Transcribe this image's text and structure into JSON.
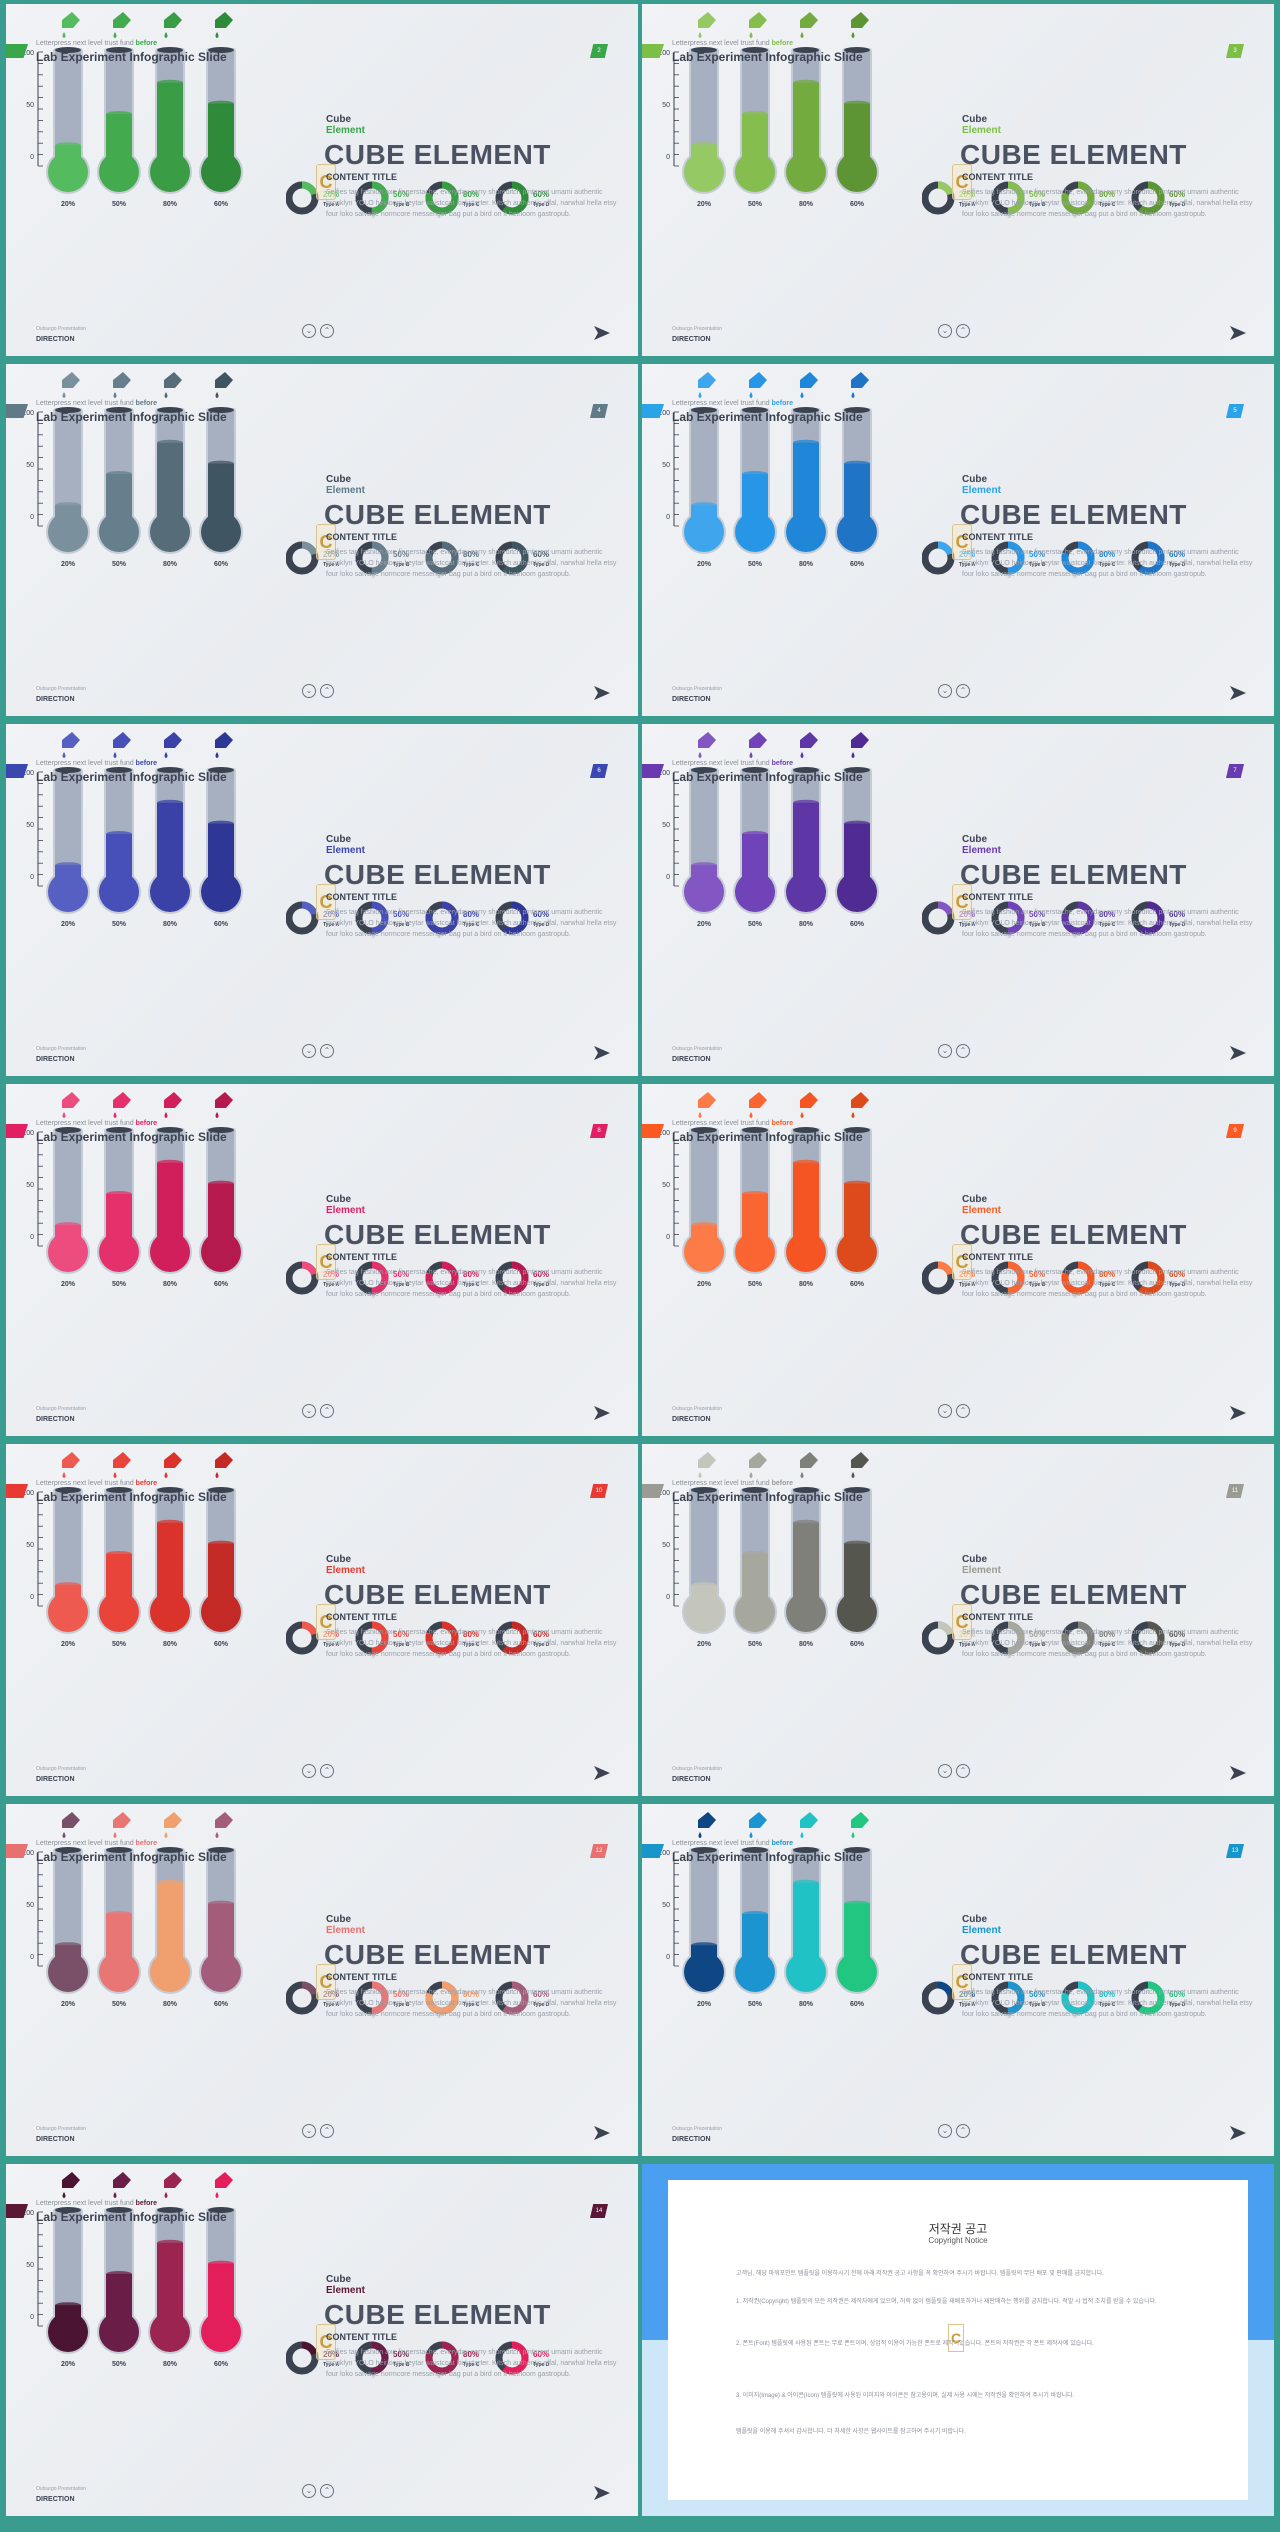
{
  "header": {
    "kicker_text": "Letterpress next level trust fund ",
    "kicker_accent": "before",
    "title": "Lab Experiment Infographic Slide"
  },
  "content": {
    "cube": "Cube",
    "element": "Element",
    "big_title": "CUBE ELEMENT",
    "content_title": "CONTENT TITLE",
    "body": "Selfies tag fashion axe fingerstache, everyday carry shoreditch pinterest umami authentic brooklyn YOLO heirloom keytar waistcoat kickstarter. Kitsch authentic offal, narwhal hella etsy four loko salvage normcore messenger bag put a bird on it heirloom gastropub.",
    "logo_glyph": "C"
  },
  "axis": {
    "ticks": [
      "100",
      "50",
      "0"
    ]
  },
  "tubes": [
    {
      "label": "20%",
      "value": 20
    },
    {
      "label": "50%",
      "value": 50
    },
    {
      "label": "80%",
      "value": 80
    },
    {
      "label": "60%",
      "value": 60
    }
  ],
  "donuts": [
    {
      "label": "20%",
      "type": "Type A",
      "value": 20
    },
    {
      "label": "50%",
      "type": "Type B",
      "value": 50
    },
    {
      "label": "80%",
      "type": "Type C",
      "value": 80
    },
    {
      "label": "60%",
      "type": "Type D",
      "value": 60
    }
  ],
  "footer": {
    "small": "Outsurgo Prezentation",
    "direction": "DIRECTION"
  },
  "slides": [
    {
      "page": "2",
      "accent": "#3aa64a",
      "colors": [
        "#55bb5f",
        "#43ab4e",
        "#3a9c45",
        "#2f8a3a"
      ]
    },
    {
      "page": "3",
      "accent": "#7cbf46",
      "colors": [
        "#95c963",
        "#85bd4f",
        "#73ab3f",
        "#5e9534"
      ]
    },
    {
      "page": "4",
      "accent": "#607a88",
      "colors": [
        "#7a909c",
        "#667f8c",
        "#566c79",
        "#3f5562"
      ]
    },
    {
      "page": "5",
      "accent": "#2aa3e8",
      "colors": [
        "#3fa6ee",
        "#2896e6",
        "#1f86d8",
        "#1f74c5"
      ]
    },
    {
      "page": "6",
      "accent": "#3b47b0",
      "colors": [
        "#5660c2",
        "#4650b8",
        "#3a42a7",
        "#2f3796"
      ]
    },
    {
      "page": "7",
      "accent": "#6a3bb0",
      "colors": [
        "#8257c4",
        "#7043b8",
        "#5f36a6",
        "#4f2b93"
      ]
    },
    {
      "page": "8",
      "accent": "#e21f63",
      "colors": [
        "#ec4c7e",
        "#e4306b",
        "#d01f5a",
        "#b51a4e"
      ]
    },
    {
      "page": "9",
      "accent": "#fb5a22",
      "colors": [
        "#fd7b47",
        "#fb6532",
        "#f45523",
        "#dd4a1c"
      ]
    },
    {
      "page": "10",
      "accent": "#e83a32",
      "colors": [
        "#ee5a50",
        "#e84439",
        "#d9332c",
        "#c42a25"
      ]
    },
    {
      "page": "11",
      "accent": "#9a9b92",
      "colors": [
        "#c4c5bb",
        "#a6a79d",
        "#7f807a",
        "#55574f"
      ]
    },
    {
      "page": "12",
      "accent": "#e8706f",
      "colors": [
        "#7a5068",
        "#e87674",
        "#f0a06f",
        "#a35d7a"
      ]
    },
    {
      "page": "13",
      "accent": "#1896cc",
      "colors": [
        "#0f4785",
        "#1c94cf",
        "#20c2c6",
        "#21c681"
      ]
    },
    {
      "page": "14",
      "accent": "#5a1736",
      "colors": [
        "#4a1432",
        "#6a1d46",
        "#9b2450",
        "#e31e5a"
      ]
    }
  ],
  "notice": {
    "title": "저작권 공고",
    "subtitle": "Copyright Notice",
    "p1": "고객님, 해당 파워포인트 템플릿을 이용하시기 전에 아래 저작권 공고 사항을 꼭 확인하여 주시기 바랍니다. 템플릿의 무단 배포 및 판매를 금지합니다.",
    "p2": "1. 저작권(Copyright) 템플릿의 모든 저작권은 제작자에게 있으며, 허락 없이 템플릿을 재배포하거나 재판매하는 행위를 금지합니다. 적발 시 법적 조치를 받을 수 있습니다.",
    "p3": "2. 폰트(Font) 템플릿에 사용된 폰트는 무료 폰트이며, 상업적 이용이 가능한 폰트로 제작되었습니다. 폰트의 저작권은 각 폰트 제작사에 있습니다.",
    "p4": "3. 이미지(Image) & 아이콘(Icon) 템플릿에 사용된 이미지와 아이콘은 참고용이며, 실제 사용 시에는 저작권을 확인하여 주시기 바랍니다.",
    "p5": "템플릿을 이용해 주셔서 감사합니다. 더 자세한 사항은 웹사이트를 참고하여 주시기 바랍니다."
  }
}
